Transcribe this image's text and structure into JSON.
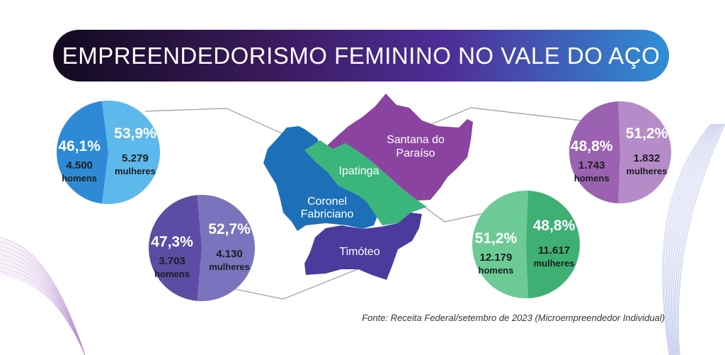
{
  "title": "EMPREENDEDORISMO FEMININO NO VALE DO AÇO",
  "source": "Fonte: Receita Federal/setembro de 2023 (Microempreendedor Individual)",
  "colors": {
    "coronel_fabriciano": {
      "dark": "#2f8ad6",
      "light": "#5db8ec",
      "map": "#1d6fb8"
    },
    "timoteo": {
      "dark": "#5d4ca3",
      "light": "#7a73be",
      "map": "#4a3b9c"
    },
    "santana_do_paraiso": {
      "dark": "#9a62b0",
      "light": "#b58bc8",
      "map": "#8a44a0"
    },
    "ipatinga": {
      "dark": "#6ccb95",
      "light": "#3fb073",
      "map": "#3bb67b"
    }
  },
  "map_labels": {
    "santana": [
      "Santana do",
      "Paraíso"
    ],
    "ipatinga": [
      "Ipatinga"
    ],
    "coronel": [
      "Coronel",
      "Fabriciano"
    ],
    "timoteo": [
      "Timóteo"
    ]
  },
  "chart_data": [
    {
      "type": "pie",
      "municipality": "Coronel Fabriciano",
      "series": [
        {
          "name": "homens",
          "percent": 46.1,
          "value": 4500,
          "percent_label": "46,1%",
          "value_label": "4.500"
        },
        {
          "name": "mulheres",
          "percent": 53.9,
          "value": 5279,
          "percent_label": "53,9%",
          "value_label": "5.279"
        }
      ]
    },
    {
      "type": "pie",
      "municipality": "Timóteo",
      "series": [
        {
          "name": "homens",
          "percent": 47.3,
          "value": 3703,
          "percent_label": "47,3%",
          "value_label": "3.703"
        },
        {
          "name": "mulheres",
          "percent": 52.7,
          "value": 4130,
          "percent_label": "52,7%",
          "value_label": "4.130"
        }
      ]
    },
    {
      "type": "pie",
      "municipality": "Santana do Paraíso",
      "series": [
        {
          "name": "homens",
          "percent": 48.8,
          "value": 1743,
          "percent_label": "48,8%",
          "value_label": "1.743"
        },
        {
          "name": "mulheres",
          "percent": 51.2,
          "value": 1832,
          "percent_label": "51,2%",
          "value_label": "1.832"
        }
      ]
    },
    {
      "type": "pie",
      "municipality": "Ipatinga",
      "series": [
        {
          "name": "homens",
          "percent": 51.2,
          "value": 12179,
          "percent_label": "51,2%",
          "value_label": "12.179"
        },
        {
          "name": "mulheres",
          "percent": 48.8,
          "value": 11617,
          "percent_label": "48,8%",
          "value_label": "11.617"
        }
      ]
    }
  ]
}
